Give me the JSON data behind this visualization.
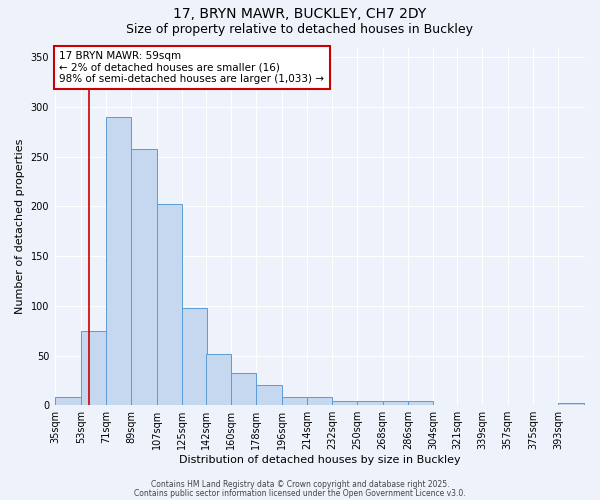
{
  "title_line1": "17, BRYN MAWR, BUCKLEY, CH7 2DY",
  "title_line2": "Size of property relative to detached houses in Buckley",
  "xlabel": "Distribution of detached houses by size in Buckley",
  "ylabel": "Number of detached properties",
  "bin_labels": [
    "35sqm",
    "53sqm",
    "71sqm",
    "89sqm",
    "107sqm",
    "125sqm",
    "142sqm",
    "160sqm",
    "178sqm",
    "196sqm",
    "214sqm",
    "232sqm",
    "250sqm",
    "268sqm",
    "286sqm",
    "304sqm",
    "321sqm",
    "339sqm",
    "357sqm",
    "375sqm",
    "393sqm"
  ],
  "bin_left_edges": [
    35,
    53,
    71,
    89,
    107,
    125,
    142,
    160,
    178,
    196,
    214,
    232,
    250,
    268,
    286,
    304,
    321,
    339,
    357,
    375,
    393
  ],
  "bin_width": 18,
  "bar_heights": [
    8,
    75,
    290,
    258,
    202,
    98,
    52,
    32,
    20,
    8,
    8,
    4,
    4,
    4,
    4,
    0,
    0,
    0,
    0,
    0,
    2
  ],
  "bar_facecolor": "#c5d8f0",
  "bar_edgecolor": "#5b9bd5",
  "red_line_x": 59,
  "red_line_color": "#cc0000",
  "ylim": [
    0,
    360
  ],
  "yticks": [
    0,
    50,
    100,
    150,
    200,
    250,
    300,
    350
  ],
  "annotation_text": "17 BRYN MAWR: 59sqm\n← 2% of detached houses are smaller (16)\n98% of semi-detached houses are larger (1,033) →",
  "annotation_box_facecolor": "#ffffff",
  "annotation_box_edgecolor": "#cc0000",
  "footer_line1": "Contains HM Land Registry data © Crown copyright and database right 2025.",
  "footer_line2": "Contains public sector information licensed under the Open Government Licence v3.0.",
  "bg_color": "#eef2fb",
  "grid_color": "#d0d8f0",
  "title_fontsize": 10,
  "subtitle_fontsize": 9,
  "axis_label_fontsize": 8,
  "tick_fontsize": 7,
  "annotation_fontsize": 7.5,
  "footer_fontsize": 5.5
}
